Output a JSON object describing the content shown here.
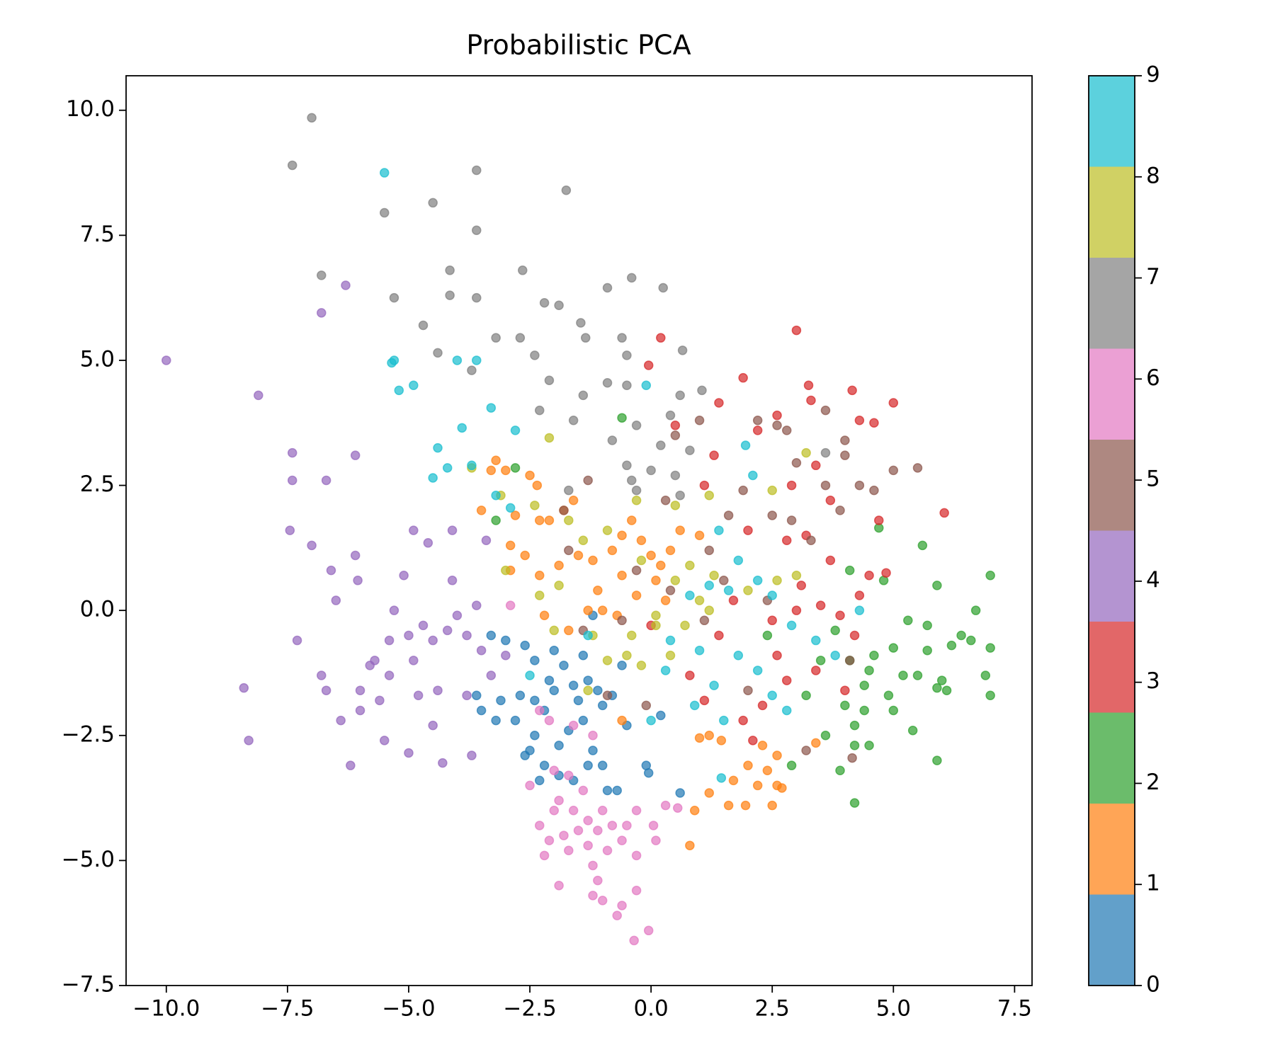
{
  "chart_data": {
    "type": "scatter",
    "title": "Probabilistic PCA",
    "xlim": [
      -10.83,
      7.86
    ],
    "ylim": [
      -7.5,
      10.69
    ],
    "xticks": [
      {
        "value": -10,
        "label": "−10.0"
      },
      {
        "value": -7.5,
        "label": "−7.5"
      },
      {
        "value": -5,
        "label": "−5.0"
      },
      {
        "value": -2.5,
        "label": "−2.5"
      },
      {
        "value": 0,
        "label": "0.0"
      },
      {
        "value": 2.5,
        "label": "2.5"
      },
      {
        "value": 5,
        "label": "5.0"
      },
      {
        "value": 7.5,
        "label": "7.5"
      }
    ],
    "yticks": [
      {
        "value": -7.5,
        "label": "−7.5"
      },
      {
        "value": -5,
        "label": "−5.0"
      },
      {
        "value": -2.5,
        "label": "−2.5"
      },
      {
        "value": 0,
        "label": "0.0"
      },
      {
        "value": 2.5,
        "label": "2.5"
      },
      {
        "value": 5,
        "label": "5.0"
      },
      {
        "value": 7.5,
        "label": "7.5"
      },
      {
        "value": 10,
        "label": "10.0"
      }
    ],
    "colorbar": {
      "lim": [
        0,
        9
      ],
      "ticks": [
        0,
        1,
        2,
        3,
        4,
        5,
        6,
        7,
        8,
        9
      ]
    },
    "opacity": 0.7,
    "series": [
      {
        "color": "#1f77b4",
        "x": [
          -3.3,
          -3.0,
          -2.6,
          -2.4,
          -2.0,
          -1.8,
          -1.4,
          -1.2,
          -1.3,
          -1.6,
          -2.0,
          -2.4,
          -2.7,
          -3.1,
          -3.6,
          -3.2,
          -2.8,
          -2.4,
          -2.5,
          -2.6,
          -2.2,
          -2.3,
          -1.9,
          -1.7,
          -1.4,
          -1.0,
          -0.8,
          -1.2,
          -1.0,
          -1.3,
          -0.9,
          -0.7,
          -1.6,
          -0.1,
          -0.05,
          -1.9,
          -0.5,
          0.6,
          0.2,
          -0.6,
          -1.1,
          -1.5,
          -2.1,
          -3.5,
          -2.2
        ],
        "y": [
          -0.5,
          -0.6,
          -0.7,
          -1.0,
          -0.8,
          -1.1,
          -0.9,
          -0.1,
          -1.4,
          -1.5,
          -1.6,
          -1.8,
          -1.7,
          -1.8,
          -1.7,
          -2.2,
          -2.2,
          -2.5,
          -2.8,
          -2.9,
          -3.1,
          -3.4,
          -3.3,
          -2.4,
          -2.2,
          -1.9,
          -1.7,
          -2.8,
          -3.1,
          -3.1,
          -3.6,
          -3.6,
          -3.4,
          -3.1,
          -3.25,
          -2.7,
          -2.3,
          -3.65,
          -2.1,
          -1.1,
          -1.6,
          -1.8,
          -1.4,
          -2.0,
          -2.0
        ]
      },
      {
        "color": "#ff7f0e",
        "x": [
          -3.2,
          -3.3,
          -3.0,
          -2.5,
          -2.35,
          -3.5,
          -2.8,
          -2.3,
          -2.1,
          -1.8,
          -1.6,
          -2.9,
          -2.6,
          -2.9,
          -2.3,
          -1.9,
          -1.5,
          -1.2,
          -0.8,
          -0.6,
          -0.4,
          -0.2,
          0.0,
          0.2,
          0.4,
          0.6,
          0.1,
          -0.3,
          -0.6,
          -1.1,
          -1.3,
          -0.7,
          0.3,
          1.0,
          -2.2,
          -1.7,
          1.2,
          1.0,
          1.45,
          2.3,
          2.6,
          2.4,
          2.0,
          1.7,
          2.2,
          2.6,
          2.7,
          1.2,
          1.6,
          1.95,
          2.5,
          0.9,
          0.8,
          3.4,
          -0.6,
          -1.0
        ],
        "y": [
          3.0,
          2.8,
          2.8,
          2.7,
          2.5,
          2.0,
          1.9,
          1.8,
          1.8,
          2.0,
          2.2,
          1.3,
          1.1,
          0.8,
          0.7,
          0.9,
          1.1,
          1.0,
          1.2,
          1.5,
          1.8,
          1.4,
          1.1,
          0.9,
          1.2,
          1.6,
          0.6,
          0.3,
          0.7,
          0.4,
          0.0,
          -0.1,
          0.2,
          1.5,
          -0.1,
          -0.4,
          -2.5,
          -2.55,
          -2.6,
          -2.7,
          -2.9,
          -3.2,
          -3.1,
          -3.4,
          -3.5,
          -3.5,
          -3.55,
          -3.65,
          -3.9,
          -3.9,
          -3.9,
          -4.0,
          -4.7,
          -2.65,
          -2.2,
          0.0
        ]
      },
      {
        "color": "#2ca02c",
        "x": [
          7.0,
          5.6,
          4.7,
          4.1,
          5.9,
          6.7,
          4.8,
          5.3,
          5.7,
          6.4,
          6.6,
          6.2,
          7.0,
          5.7,
          5.0,
          4.6,
          4.1,
          6.9,
          6.0,
          5.9,
          6.1,
          5.5,
          4.9,
          4.4,
          4.0,
          4.4,
          5.0,
          4.2,
          5.4,
          5.9,
          4.2,
          4.5,
          4.2,
          3.9,
          7.0,
          3.2,
          2.9,
          3.6,
          3.5,
          3.8,
          2.4,
          -3.2,
          -2.8,
          -0.6,
          4.5,
          5.2
        ],
        "y": [
          0.7,
          1.3,
          1.65,
          0.8,
          0.5,
          0.0,
          0.6,
          -0.2,
          -0.3,
          -0.5,
          -0.6,
          -0.7,
          -0.75,
          -0.8,
          -0.75,
          -0.9,
          -1.0,
          -1.3,
          -1.4,
          -1.55,
          -1.6,
          -1.3,
          -1.7,
          -1.5,
          -1.9,
          -2.0,
          -2.0,
          -2.3,
          -2.4,
          -3.0,
          -2.7,
          -2.7,
          -3.85,
          -3.2,
          -1.7,
          -1.7,
          -3.1,
          -2.5,
          -1.0,
          -0.4,
          -0.5,
          1.8,
          2.85,
          3.85,
          -1.2,
          -1.3
        ]
      },
      {
        "color": "#d62728",
        "x": [
          3.0,
          0.2,
          -0.05,
          1.9,
          3.25,
          4.15,
          5.0,
          3.3,
          1.4,
          2.6,
          4.3,
          4.6,
          2.2,
          0.5,
          1.3,
          2.9,
          3.4,
          3.7,
          6.05,
          4.7,
          3.2,
          2.8,
          3.7,
          4.5,
          4.85,
          1.1,
          2.0,
          3.1,
          3.9,
          4.2,
          3.4,
          2.6,
          1.4,
          2.3,
          4.0,
          1.1,
          2.1,
          0.8,
          3.0,
          2.5,
          1.7,
          0.0,
          1.9,
          4.3,
          3.5,
          2.8
        ],
        "y": [
          5.6,
          5.45,
          4.9,
          4.65,
          4.5,
          4.4,
          4.15,
          4.2,
          4.15,
          3.9,
          3.8,
          3.75,
          3.6,
          3.7,
          3.1,
          2.5,
          2.9,
          2.2,
          1.95,
          1.8,
          1.5,
          1.4,
          1.0,
          0.7,
          0.75,
          2.5,
          1.6,
          0.5,
          -0.1,
          -0.5,
          -1.2,
          -0.9,
          -0.5,
          -1.9,
          -1.6,
          -1.8,
          -2.6,
          -1.3,
          0.0,
          -0.2,
          0.2,
          -0.3,
          -2.2,
          0.3,
          0.1,
          -1.4
        ]
      },
      {
        "color": "#9467bd",
        "x": [
          -10.0,
          -8.1,
          -6.3,
          -6.8,
          -7.4,
          -6.1,
          -7.4,
          -6.7,
          -7.45,
          -7.0,
          -6.6,
          -6.1,
          -6.05,
          -6.5,
          -7.3,
          -8.4,
          -8.3,
          -6.8,
          -6.7,
          -6.4,
          -6.0,
          -5.7,
          -5.4,
          -5.0,
          -4.7,
          -4.5,
          -4.2,
          -4.0,
          -3.8,
          -4.6,
          -4.1,
          -4.9,
          -5.1,
          -5.3,
          -4.9,
          -5.4,
          -5.6,
          -6.2,
          -5.5,
          -5.0,
          -4.5,
          -4.3,
          -3.7,
          -3.8,
          -4.4,
          -3.3,
          -3.5,
          -4.1,
          -3.6,
          -5.8,
          -4.8,
          -6.0,
          -3.0,
          -3.4
        ],
        "y": [
          5.0,
          4.3,
          6.5,
          5.95,
          3.15,
          3.1,
          2.6,
          2.6,
          1.6,
          1.3,
          0.8,
          1.1,
          0.6,
          0.2,
          -0.6,
          -1.55,
          -2.6,
          -1.3,
          -1.6,
          -2.2,
          -1.6,
          -1.0,
          -0.6,
          -0.5,
          -0.3,
          -0.6,
          -0.4,
          -0.1,
          -0.5,
          1.35,
          1.6,
          1.6,
          0.7,
          0.0,
          -1.0,
          -1.3,
          -1.8,
          -3.1,
          -2.6,
          -2.85,
          -2.3,
          -3.05,
          -2.9,
          -1.7,
          -1.6,
          -1.3,
          -0.8,
          0.6,
          0.1,
          -1.1,
          -1.7,
          -2.0,
          -0.9,
          1.4
        ]
      },
      {
        "color": "#8c564b",
        "x": [
          1.0,
          2.2,
          2.6,
          3.6,
          2.8,
          4.0,
          4.0,
          3.0,
          3.6,
          4.3,
          4.6,
          5.5,
          5.0,
          3.9,
          2.5,
          1.6,
          2.9,
          3.3,
          1.2,
          1.5,
          0.4,
          -0.3,
          -1.7,
          -1.4,
          -0.6,
          0.3,
          1.9,
          4.1,
          4.15,
          3.2,
          2.0,
          -0.1,
          -0.9,
          1.1,
          -1.3,
          0.5,
          -1.8,
          2.4
        ],
        "y": [
          3.8,
          3.8,
          3.7,
          4.0,
          3.6,
          3.4,
          3.1,
          2.95,
          2.5,
          2.5,
          2.4,
          2.85,
          2.8,
          2.0,
          1.9,
          1.9,
          1.8,
          1.4,
          1.2,
          0.6,
          0.4,
          0.8,
          1.2,
          -0.4,
          -0.2,
          2.2,
          2.4,
          -1.0,
          -2.95,
          -2.8,
          -1.6,
          -1.9,
          -1.7,
          -0.2,
          2.6,
          3.5,
          2.0,
          0.2
        ]
      },
      {
        "color": "#e377c2",
        "x": [
          -2.9,
          -2.3,
          -2.1,
          -1.6,
          -1.2,
          -2.5,
          -2.0,
          -1.7,
          -1.4,
          -1.9,
          -2.0,
          -1.6,
          -1.3,
          -1.0,
          -0.8,
          -1.1,
          -1.5,
          -1.8,
          -2.1,
          -2.2,
          -1.7,
          -1.3,
          -0.9,
          -0.6,
          -0.3,
          -1.2,
          -1.1,
          -1.2,
          -1.9,
          -1.0,
          -0.6,
          -0.7,
          -0.3,
          -0.35,
          -0.05,
          0.1,
          0.05,
          0.3,
          0.55,
          -0.5,
          -2.3,
          -0.3
        ],
        "y": [
          0.1,
          -2.0,
          -2.2,
          -2.3,
          -2.5,
          -3.5,
          -3.2,
          -3.3,
          -3.6,
          -3.8,
          -4.0,
          -4.0,
          -4.2,
          -4.0,
          -4.3,
          -4.4,
          -4.4,
          -4.5,
          -4.6,
          -4.9,
          -4.8,
          -4.7,
          -4.8,
          -4.6,
          -4.9,
          -5.1,
          -5.4,
          -5.7,
          -5.5,
          -5.8,
          -5.9,
          -6.1,
          -5.6,
          -6.6,
          -6.4,
          -4.6,
          -4.3,
          -3.9,
          -3.95,
          -4.3,
          -4.3,
          -4.0
        ]
      },
      {
        "color": "#7f7f7f",
        "x": [
          -7.0,
          -7.4,
          -3.6,
          -1.75,
          -4.5,
          -5.5,
          -3.6,
          -6.8,
          -2.65,
          -4.15,
          -4.15,
          -3.6,
          -5.3,
          -0.9,
          -0.4,
          0.25,
          -2.2,
          -1.9,
          -1.45,
          -4.7,
          -3.2,
          -2.7,
          -4.4,
          -2.4,
          -1.35,
          -0.6,
          -0.5,
          0.65,
          -3.7,
          -2.1,
          -0.9,
          -0.5,
          -1.4,
          0.6,
          1.05,
          -2.3,
          -1.6,
          -0.3,
          0.4,
          -0.8,
          0.2,
          0.8,
          -0.5,
          0.0,
          0.5,
          -0.3,
          0.6,
          3.6,
          -1.7,
          -0.4
        ],
        "y": [
          9.85,
          8.9,
          8.8,
          8.4,
          8.15,
          7.95,
          7.6,
          6.7,
          6.8,
          6.8,
          6.3,
          6.25,
          6.25,
          6.45,
          6.65,
          6.45,
          6.15,
          6.1,
          5.75,
          5.7,
          5.45,
          5.45,
          5.15,
          5.1,
          5.45,
          5.45,
          5.1,
          5.2,
          4.8,
          4.6,
          4.55,
          4.5,
          4.3,
          4.3,
          4.4,
          4.0,
          3.8,
          3.7,
          3.9,
          3.4,
          3.3,
          3.2,
          2.9,
          2.8,
          2.7,
          2.4,
          2.3,
          3.15,
          2.4,
          2.6
        ]
      },
      {
        "color": "#bcbd22",
        "x": [
          -3.7,
          -2.1,
          -3.1,
          -2.4,
          -1.7,
          -0.3,
          0.5,
          1.2,
          2.5,
          3.2,
          -1.4,
          -0.9,
          -0.2,
          0.8,
          1.3,
          0.5,
          1.0,
          2.0,
          2.6,
          3.0,
          -1.9,
          -2.0,
          -1.2,
          -0.4,
          0.1,
          -0.5,
          -0.9,
          -0.2,
          0.4,
          1.2,
          -1.3,
          -3.0,
          0.1,
          0.7,
          -2.3
        ],
        "y": [
          2.85,
          3.45,
          2.3,
          2.1,
          1.8,
          2.2,
          2.1,
          2.3,
          2.4,
          3.15,
          1.4,
          1.6,
          1.0,
          0.9,
          0.7,
          0.6,
          0.2,
          0.4,
          0.6,
          0.7,
          0.5,
          -0.4,
          -0.5,
          -0.5,
          -0.3,
          -0.9,
          -1.0,
          -1.1,
          -0.9,
          0.0,
          -1.6,
          0.8,
          -0.1,
          -0.3,
          0.3
        ]
      },
      {
        "color": "#17becf",
        "x": [
          -5.5,
          -5.3,
          -5.35,
          -4.0,
          -3.6,
          -4.9,
          -5.2,
          -3.3,
          -3.9,
          -4.4,
          -4.2,
          -4.5,
          -3.7,
          -2.8,
          -0.1,
          1.95,
          2.1,
          -3.2,
          -2.9,
          1.4,
          1.8,
          2.2,
          0.8,
          1.2,
          1.6,
          2.5,
          2.9,
          3.4,
          1.0,
          0.4,
          1.8,
          0.3,
          1.3,
          2.5,
          1.5,
          0.0,
          -1.3,
          -2.5,
          1.45,
          4.3,
          2.8,
          3.8,
          0.9,
          2.2
        ],
        "y": [
          8.75,
          5.0,
          4.95,
          5.0,
          5.0,
          4.5,
          4.4,
          4.05,
          3.65,
          3.25,
          2.85,
          2.65,
          2.9,
          3.6,
          4.5,
          3.3,
          2.7,
          2.3,
          2.05,
          1.6,
          1.0,
          0.6,
          0.3,
          0.5,
          0.4,
          0.3,
          -0.3,
          -0.6,
          -0.8,
          -0.6,
          -0.9,
          -1.2,
          -1.5,
          -1.7,
          -2.2,
          -2.2,
          -0.5,
          -1.3,
          -3.35,
          0.0,
          -2.0,
          -0.9,
          -1.9,
          -1.2
        ]
      }
    ]
  }
}
